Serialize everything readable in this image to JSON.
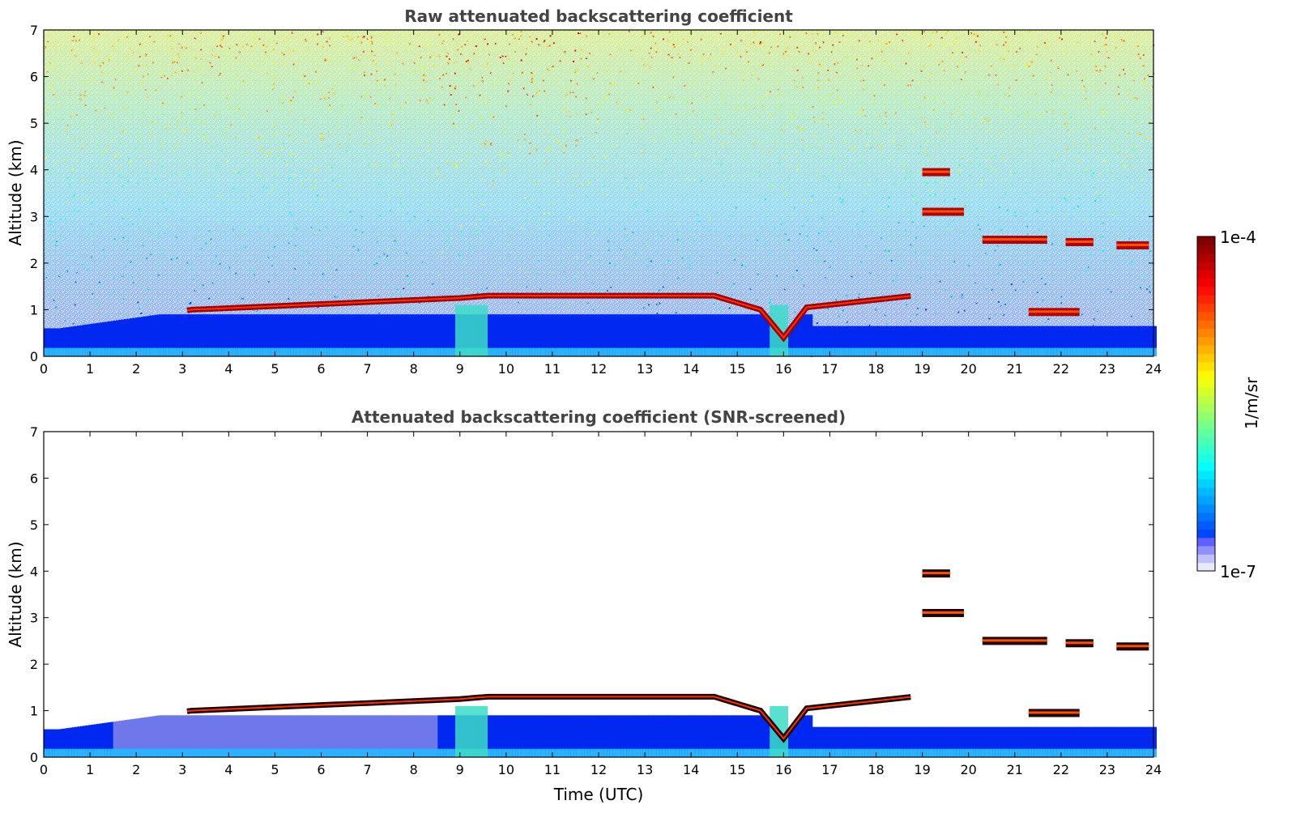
{
  "chart_data": [
    {
      "type": "heatmap",
      "title": "Raw attenuated backscattering coefficient",
      "xlabel": "",
      "ylabel": "Altitude (km)",
      "xlim": [
        0,
        24
      ],
      "ylim": [
        0,
        7
      ],
      "xticks": [
        "0",
        "1",
        "2",
        "3",
        "4",
        "5",
        "6",
        "7",
        "8",
        "9",
        "10",
        "11",
        "12",
        "13",
        "14",
        "15",
        "16",
        "17",
        "18",
        "19",
        "20",
        "21",
        "22",
        "23",
        "24"
      ],
      "yticks": [
        "0",
        "1",
        "2",
        "3",
        "4",
        "5",
        "6",
        "7"
      ],
      "screened": false,
      "features": [
        {
          "kind": "boundary_layer_top",
          "points": [
            [
              0.3,
              0.6
            ],
            [
              3.2,
              1.0
            ],
            [
              6,
              1.12
            ],
            [
              9,
              1.25
            ],
            [
              9.6,
              1.3
            ],
            [
              12,
              1.3
            ],
            [
              14.5,
              1.3
            ],
            [
              15.5,
              1.0
            ],
            [
              16,
              0.4
            ],
            [
              16.5,
              1.05
            ],
            [
              18.8,
              1.3
            ]
          ]
        },
        {
          "kind": "cloud_layer",
          "x": [
            19.0,
            19.6
          ],
          "altitude": 3.95
        },
        {
          "kind": "cloud_layer",
          "x": [
            19.0,
            19.9
          ],
          "altitude": 3.1
        },
        {
          "kind": "cloud_layer",
          "x": [
            20.3,
            21.7
          ],
          "altitude": 2.5
        },
        {
          "kind": "cloud_layer",
          "x": [
            22.1,
            22.7
          ],
          "altitude": 2.45
        },
        {
          "kind": "cloud_layer",
          "x": [
            23.2,
            23.9
          ],
          "altitude": 2.38
        },
        {
          "kind": "cloud_layer",
          "x": [
            21.3,
            22.4
          ],
          "altitude": 0.95
        }
      ]
    },
    {
      "type": "heatmap",
      "title": "Attenuated backscattering coefficient (SNR-screened)",
      "xlabel": "Time (UTC)",
      "ylabel": "Altitude (km)",
      "xlim": [
        0,
        24
      ],
      "ylim": [
        0,
        7
      ],
      "xticks": [
        "0",
        "1",
        "2",
        "3",
        "4",
        "5",
        "6",
        "7",
        "8",
        "9",
        "10",
        "11",
        "12",
        "13",
        "14",
        "15",
        "16",
        "17",
        "18",
        "19",
        "20",
        "21",
        "22",
        "23",
        "24"
      ],
      "yticks": [
        "0",
        "1",
        "2",
        "3",
        "4",
        "5",
        "6",
        "7"
      ],
      "screened": true
    }
  ],
  "colorbar": {
    "label": "1/m/sr",
    "max_label": "1e-4",
    "min_label": "1e-7",
    "colormap": "jet",
    "scale": "log"
  },
  "colors": {
    "low": "#00008f",
    "blue": "#0000ff",
    "cyan": "#00ffff",
    "yellow": "#ffff00",
    "red": "#ff0000",
    "high": "#800000"
  }
}
